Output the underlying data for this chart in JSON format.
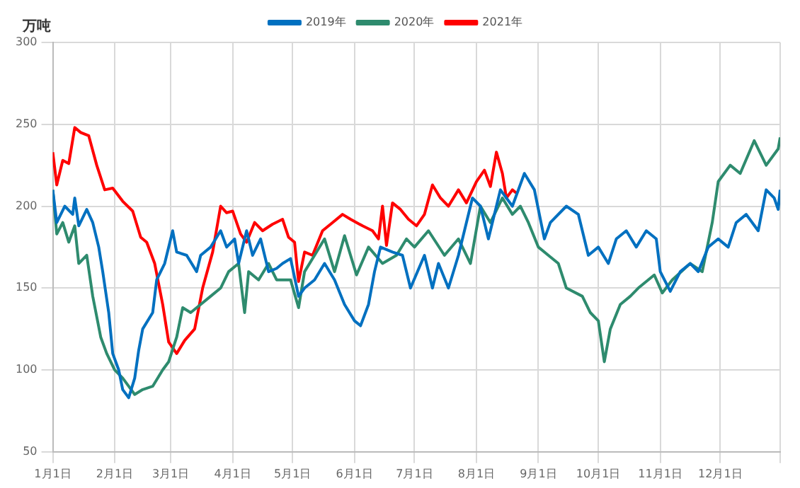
{
  "chart_data": {
    "type": "line",
    "ylabel": "万吨",
    "xlim": [
      "--01-01",
      "--12-31"
    ],
    "xticks": [
      {
        "value": "--01-01",
        "label": "1月1日"
      },
      {
        "value": "--02-01",
        "label": "2月1日"
      },
      {
        "value": "--03-01",
        "label": "3月1日"
      },
      {
        "value": "--04-01",
        "label": "4月1日"
      },
      {
        "value": "--05-01",
        "label": "5月1日"
      },
      {
        "value": "--06-01",
        "label": "6月1日"
      },
      {
        "value": "--07-01",
        "label": "7月1日"
      },
      {
        "value": "--08-01",
        "label": "8月1日"
      },
      {
        "value": "--09-01",
        "label": "9月1日"
      },
      {
        "value": "--10-01",
        "label": "10月1日"
      },
      {
        "value": "--11-01",
        "label": "11月1日"
      },
      {
        "value": "--12-01",
        "label": "12月1日"
      },
      {
        "value": "--12-31",
        "label": null
      }
    ],
    "ylim": [
      50,
      300
    ],
    "yticks": [
      50,
      100,
      150,
      200,
      250,
      300
    ],
    "grid": true,
    "legend": "top",
    "marker": "none",
    "line_style": "solid",
    "series": [
      {
        "name": "2019年",
        "color": "#0070c0",
        "x": [
          "--01-01",
          "--01-03",
          "--01-07",
          "--01-11",
          "--01-12",
          "--01-14",
          "--01-18",
          "--01-21",
          "--01-24",
          "--01-26",
          "--01-29",
          "--01-31",
          "--02-03",
          "--02-05",
          "--02-08",
          "--02-11",
          "--02-13",
          "--02-15",
          "--02-20",
          "--02-22",
          "--02-26",
          "--03-02",
          "--03-04",
          "--03-09",
          "--03-14",
          "--03-16",
          "--03-21",
          "--03-26",
          "--03-29",
          "--04-02",
          "--04-04",
          "--04-08",
          "--04-11",
          "--04-15",
          "--04-19",
          "--04-23",
          "--04-26",
          "--04-30",
          "--05-04",
          "--05-07",
          "--05-12",
          "--05-17",
          "--05-22",
          "--05-27",
          "--06-01",
          "--06-04",
          "--06-08",
          "--06-11",
          "--06-14",
          "--06-20",
          "--06-25",
          "--06-29",
          "--07-06",
          "--07-10",
          "--07-13",
          "--07-18",
          "--07-23",
          "--07-30",
          "--08-03",
          "--08-07",
          "--08-13",
          "--08-19",
          "--08-25",
          "--08-30",
          "--09-04",
          "--09-07",
          "--09-15",
          "--09-21",
          "--09-26",
          "--10-01",
          "--10-06",
          "--10-10",
          "--10-15",
          "--10-20",
          "--10-25",
          "--10-30",
          "--11-01",
          "--11-06",
          "--11-11",
          "--11-16",
          "--11-20",
          "--11-25",
          "--11-30",
          "--12-05",
          "--12-09",
          "--12-14",
          "--12-20",
          "--12-24",
          "--12-28",
          "--12-30",
          "--12-31"
        ],
        "values": [
          210,
          190,
          200,
          195,
          205,
          188,
          198,
          190,
          175,
          160,
          135,
          110,
          100,
          88,
          83,
          95,
          112,
          125,
          135,
          155,
          165,
          185,
          172,
          170,
          160,
          170,
          175,
          185,
          175,
          180,
          165,
          185,
          170,
          180,
          160,
          162,
          165,
          168,
          145,
          150,
          155,
          165,
          155,
          140,
          130,
          127,
          140,
          160,
          175,
          172,
          170,
          150,
          170,
          150,
          165,
          150,
          170,
          205,
          200,
          180,
          210,
          200,
          220,
          210,
          180,
          190,
          200,
          195,
          170,
          175,
          165,
          180,
          185,
          175,
          185,
          180,
          160,
          148,
          160,
          165,
          160,
          175,
          180,
          175,
          190,
          195,
          185,
          210,
          205,
          198,
          210
        ]
      },
      {
        "name": "2020年",
        "color": "#2e8b6e",
        "x": [
          "--01-01",
          "--01-03",
          "--01-06",
          "--01-09",
          "--01-12",
          "--01-14",
          "--01-18",
          "--01-21",
          "--01-25",
          "--01-28",
          "--02-01",
          "--02-05",
          "--02-08",
          "--02-11",
          "--02-15",
          "--02-20",
          "--02-25",
          "--02-28",
          "--03-04",
          "--03-07",
          "--03-11",
          "--03-16",
          "--03-21",
          "--03-26",
          "--03-30",
          "--04-04",
          "--04-07",
          "--04-09",
          "--04-14",
          "--04-19",
          "--04-23",
          "--04-30",
          "--05-04",
          "--05-07",
          "--05-12",
          "--05-17",
          "--05-22",
          "--05-27",
          "--06-02",
          "--06-08",
          "--06-15",
          "--06-22",
          "--06-27",
          "--07-01",
          "--07-08",
          "--07-16",
          "--07-23",
          "--07-29",
          "--08-03",
          "--08-08",
          "--08-14",
          "--08-19",
          "--08-23",
          "--08-27",
          "--09-01",
          "--09-06",
          "--09-11",
          "--09-15",
          "--09-23",
          "--09-27",
          "--10-01",
          "--10-04",
          "--10-07",
          "--10-12",
          "--10-17",
          "--10-21",
          "--10-29",
          "--11-02",
          "--11-07",
          "--11-16",
          "--11-22",
          "--11-27",
          "--11-30",
          "--12-06",
          "--12-11",
          "--12-18",
          "--12-24",
          "--12-30",
          "--12-31"
        ],
        "values": [
          210,
          183,
          190,
          178,
          188,
          165,
          170,
          145,
          120,
          110,
          100,
          95,
          90,
          85,
          88,
          90,
          100,
          105,
          120,
          138,
          135,
          140,
          145,
          150,
          160,
          165,
          135,
          160,
          155,
          165,
          155,
          155,
          138,
          160,
          170,
          180,
          160,
          182,
          158,
          175,
          165,
          170,
          180,
          175,
          185,
          170,
          180,
          165,
          200,
          190,
          205,
          195,
          200,
          190,
          175,
          170,
          165,
          150,
          145,
          135,
          130,
          105,
          125,
          140,
          145,
          150,
          158,
          147,
          155,
          165,
          160,
          190,
          215,
          225,
          220,
          240,
          225,
          235,
          242
        ]
      },
      {
        "name": "2021年",
        "color": "#ff0000",
        "x": [
          "--01-01",
          "--01-03",
          "--01-06",
          "--01-09",
          "--01-12",
          "--01-15",
          "--01-19",
          "--01-23",
          "--01-27",
          "--01-31",
          "--02-05",
          "--02-10",
          "--02-14",
          "--02-17",
          "--02-21",
          "--02-25",
          "--02-28",
          "--03-04",
          "--03-08",
          "--03-13",
          "--03-17",
          "--03-22",
          "--03-26",
          "--03-29",
          "--04-01",
          "--04-05",
          "--04-08",
          "--04-12",
          "--04-16",
          "--04-21",
          "--04-26",
          "--04-29",
          "--05-02",
          "--05-04",
          "--05-07",
          "--05-11",
          "--05-16",
          "--05-21",
          "--05-26",
          "--05-30",
          "--06-05",
          "--06-10",
          "--06-13",
          "--06-15",
          "--06-17",
          "--06-20",
          "--06-24",
          "--06-28",
          "--07-02",
          "--07-06",
          "--07-10",
          "--07-14",
          "--07-18",
          "--07-23",
          "--07-27",
          "--08-01",
          "--08-05",
          "--08-08",
          "--08-11",
          "--08-14",
          "--08-16",
          "--08-19",
          "--08-21"
        ],
        "values": [
          233,
          213,
          228,
          226,
          248,
          245,
          243,
          225,
          210,
          211,
          203,
          197,
          181,
          178,
          165,
          140,
          117,
          110,
          118,
          125,
          150,
          172,
          200,
          196,
          197,
          183,
          178,
          190,
          185,
          189,
          192,
          181,
          178,
          154,
          172,
          170,
          185,
          190,
          195,
          192,
          188,
          185,
          180,
          200,
          176,
          202,
          198,
          192,
          188,
          195,
          213,
          205,
          200,
          210,
          202,
          215,
          222,
          212,
          233,
          220,
          205,
          210,
          208
        ]
      }
    ]
  }
}
